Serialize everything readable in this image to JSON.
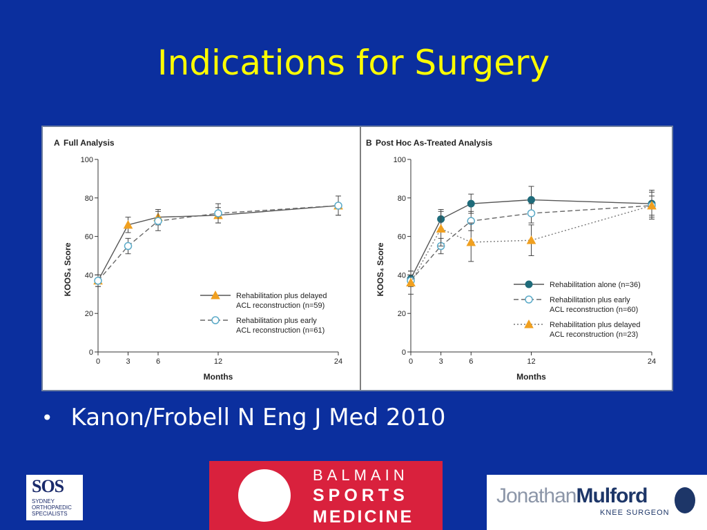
{
  "slide": {
    "title": "Indications for Surgery",
    "bullet": "Kanon/Frobell N Eng J Med 2010"
  },
  "logos": {
    "sos": {
      "mark": "SOS",
      "line1": "SYDNEY",
      "line2": "ORTHOPAEDIC",
      "line3": "SPECIALISTS"
    },
    "bsm": {
      "line1": "BALMAIN",
      "line2": "SPORTS",
      "line3": "MEDICINE"
    },
    "jm": {
      "name_light": "Jonathan",
      "name_bold": "Mulford",
      "subtitle": "KNEE SURGEON"
    }
  },
  "colors": {
    "background": "#0b2f9e",
    "title": "#ffff00",
    "orange": "#f0a020",
    "teal": "#1f6b7a",
    "gray": "#666666"
  },
  "chart_data": [
    {
      "type": "line",
      "panel": "A",
      "title": "Full Analysis",
      "xlabel": "Months",
      "ylabel": "KOOS₄ Score",
      "x": [
        0,
        3,
        6,
        12,
        24
      ],
      "xticks": [
        "0",
        "3",
        "6",
        "12",
        "24"
      ],
      "yticks": [
        "0",
        "20",
        "40",
        "60",
        "80",
        "100"
      ],
      "xlim": [
        0,
        24
      ],
      "ylim": [
        0,
        100
      ],
      "legend_position": "bottom-right",
      "series": [
        {
          "name": "Rehabilitation plus delayed ACL reconstruction (n=59)",
          "legend_lines": [
            "Rehabilitation plus delayed",
            "ACL reconstruction (n=59)"
          ],
          "marker": "triangle",
          "line": "solid",
          "color": "#f0a020",
          "values": [
            37,
            66,
            70,
            71,
            76
          ],
          "err": [
            3,
            4,
            4,
            4,
            5
          ]
        },
        {
          "name": "Rehabilitation plus early ACL reconstruction (n=61)",
          "legend_lines": [
            "Rehabilitation plus early",
            "ACL reconstruction (n=61)"
          ],
          "marker": "circle-open",
          "line": "dashed",
          "color": "#5aaac8",
          "values": [
            37,
            55,
            68,
            72,
            76
          ],
          "err": [
            3,
            4,
            5,
            5,
            5
          ]
        }
      ]
    },
    {
      "type": "line",
      "panel": "B",
      "title": "Post Hoc As-Treated Analysis",
      "xlabel": "Months",
      "ylabel": "KOOS₄ Score",
      "x": [
        0,
        3,
        6,
        12,
        24
      ],
      "xticks": [
        "0",
        "3",
        "6",
        "12",
        "24"
      ],
      "yticks": [
        "0",
        "20",
        "40",
        "60",
        "80",
        "100"
      ],
      "xlim": [
        0,
        24
      ],
      "ylim": [
        0,
        100
      ],
      "legend_position": "bottom-right",
      "series": [
        {
          "name": "Rehabilitation alone (n=36)",
          "legend_lines": [
            "Rehabilitation alone (n=36)"
          ],
          "marker": "circle-filled",
          "line": "solid",
          "color": "#1f6b7a",
          "values": [
            38,
            69,
            77,
            79,
            77
          ],
          "err": [
            4,
            5,
            5,
            7,
            7
          ]
        },
        {
          "name": "Rehabilitation plus early ACL reconstruction (n=60)",
          "legend_lines": [
            "Rehabilitation plus early",
            "ACL reconstruction (n=60)"
          ],
          "marker": "circle-open",
          "line": "dashed",
          "color": "#5aaac8",
          "values": [
            37,
            55,
            68,
            72,
            76
          ],
          "err": [
            3,
            4,
            5,
            5,
            5
          ]
        },
        {
          "name": "Rehabilitation plus delayed ACL reconstruction (n=23)",
          "legend_lines": [
            "Rehabilitation plus delayed",
            "ACL reconstruction (n=23)"
          ],
          "marker": "triangle",
          "line": "dotted",
          "color": "#f0a020",
          "values": [
            36,
            64,
            57,
            58,
            76
          ],
          "err": [
            6,
            9,
            10,
            8,
            7
          ]
        }
      ]
    }
  ]
}
